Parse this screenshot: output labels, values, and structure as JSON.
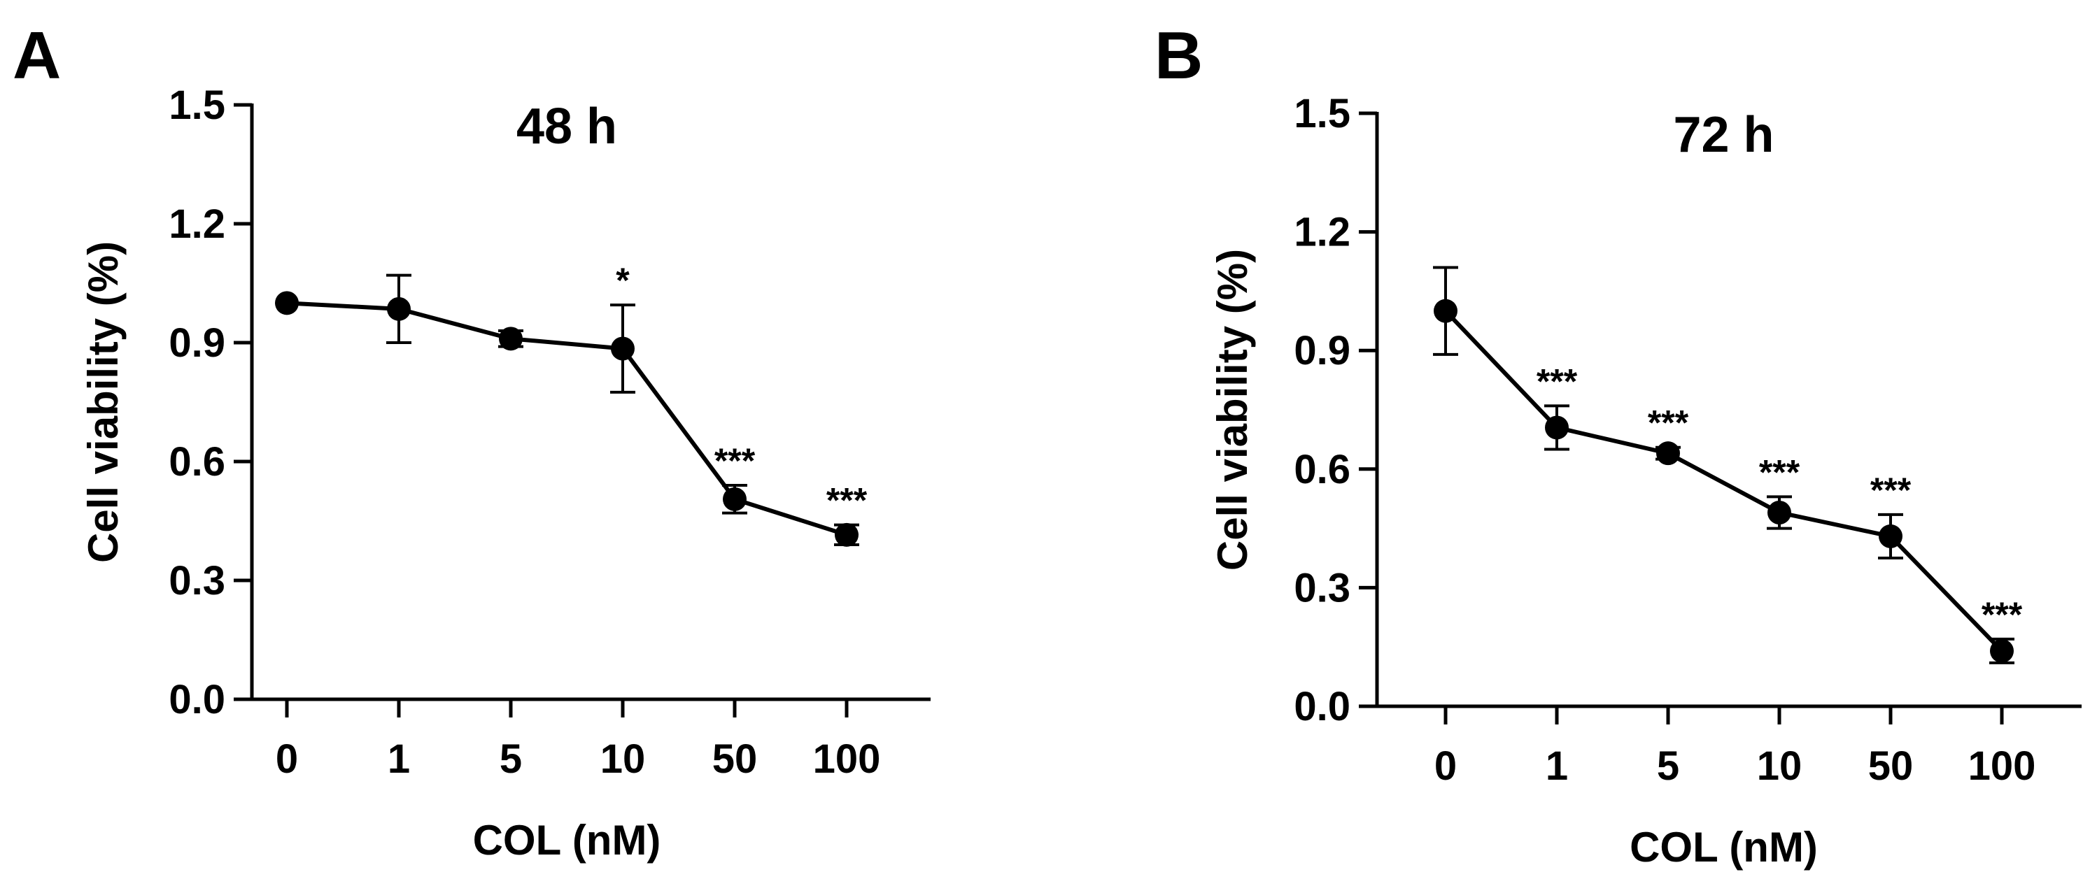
{
  "chart_data": [
    {
      "panel": "A",
      "type": "line",
      "title": "48 h",
      "xlabel": "COL (nM)",
      "ylabel": "Cell viability (%)",
      "categories": [
        "0",
        "1",
        "5",
        "10",
        "50",
        "100"
      ],
      "values": [
        1.0,
        0.985,
        0.91,
        0.885,
        0.505,
        0.415
      ],
      "errors": [
        0.0,
        0.085,
        0.02,
        0.11,
        0.035,
        0.025
      ],
      "significance": [
        "",
        "",
        "",
        "*",
        "***",
        "***"
      ],
      "ylim": [
        0,
        1.5
      ],
      "yticks": [
        "0.0",
        "0.3",
        "0.6",
        "0.9",
        "1.2",
        "1.5"
      ],
      "grid": false,
      "color": "#000000"
    },
    {
      "panel": "B",
      "type": "line",
      "title": "72 h",
      "xlabel": "COL (nM)",
      "ylabel": "Cell viability (%)",
      "categories": [
        "0",
        "1",
        "5",
        "10",
        "50",
        "100"
      ],
      "values": [
        1.0,
        0.705,
        0.64,
        0.49,
        0.43,
        0.14
      ],
      "errors": [
        0.11,
        0.055,
        0.015,
        0.04,
        0.055,
        0.03
      ],
      "significance": [
        "",
        "***",
        "***",
        "***",
        "***",
        "***"
      ],
      "ylim": [
        0,
        1.5
      ],
      "yticks": [
        "0.0",
        "0.3",
        "0.6",
        "0.9",
        "1.2",
        "1.5"
      ],
      "grid": false,
      "color": "#000000"
    }
  ]
}
